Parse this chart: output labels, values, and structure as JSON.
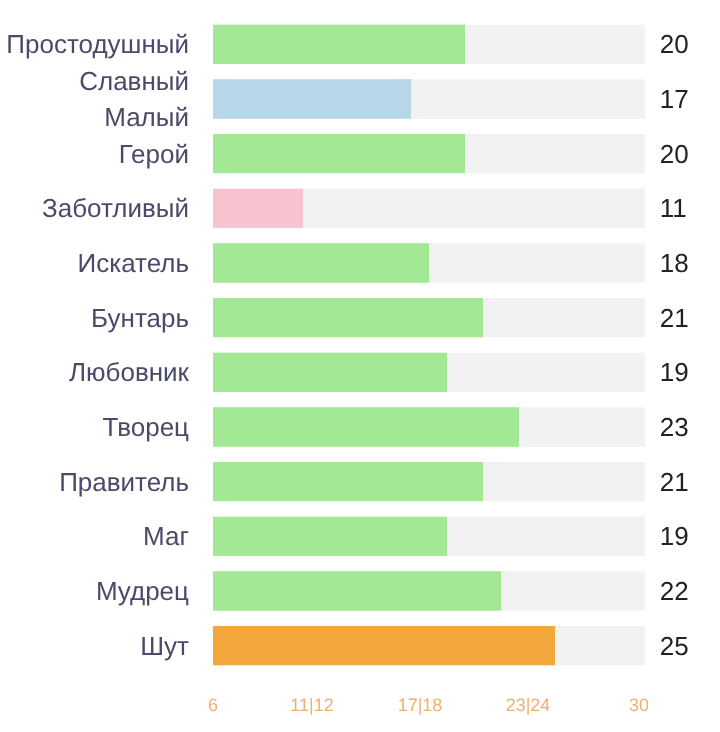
{
  "chart_data": {
    "type": "bar",
    "orientation": "horizontal",
    "categories": [
      "Простодушный",
      "Славный\nМалый",
      "Герой",
      "Заботливый",
      "Искатель",
      "Бунтарь",
      "Любовник",
      "Творец",
      "Правитель",
      "Маг",
      "Мудрец",
      "Шут"
    ],
    "values": [
      20,
      17,
      20,
      11,
      18,
      21,
      19,
      23,
      21,
      19,
      22,
      25
    ],
    "colors": [
      "#a3e894",
      "#b6d7e8",
      "#a3e894",
      "#f6c3cf",
      "#a3e894",
      "#a3e894",
      "#a3e894",
      "#a3e894",
      "#a3e894",
      "#a3e894",
      "#a3e894",
      "#f3a73c"
    ],
    "xlim": [
      6,
      30
    ],
    "xticks": [
      6,
      {
        "value": 11.5,
        "label": "11|12"
      },
      {
        "value": 17.5,
        "label": "17|18"
      },
      {
        "value": 23.5,
        "label": "23|24"
      },
      30
    ],
    "data_labels": true,
    "grid": false
  }
}
